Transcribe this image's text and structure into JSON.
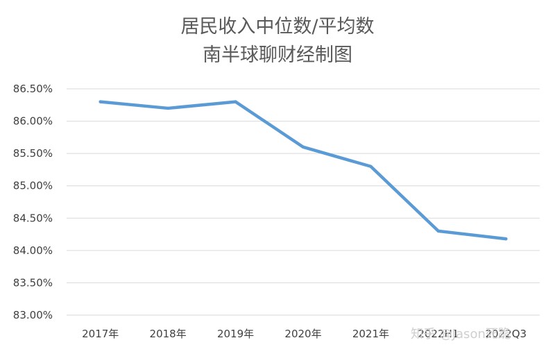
{
  "chart_data": {
    "type": "line",
    "title": "居民收入中位数/平均数",
    "subtitle": "南半球聊财经制图",
    "categories": [
      "2017年",
      "2018年",
      "2019年",
      "2020年",
      "2021年",
      "2022H1",
      "2022Q3"
    ],
    "series": [
      {
        "values": [
          86.3,
          86.2,
          86.3,
          85.6,
          85.3,
          84.3,
          84.18
        ]
      }
    ],
    "ylim": [
      83.0,
      86.5
    ],
    "yticks": [
      "86.50%",
      "86.00%",
      "85.50%",
      "85.00%",
      "84.50%",
      "84.00%",
      "83.50%",
      "83.00%"
    ],
    "grid": true,
    "legend": "none",
    "line_color": "#5B9BD5",
    "grid_color": "#D9D9D9"
  },
  "watermark": "知乎 @Jason死跪"
}
